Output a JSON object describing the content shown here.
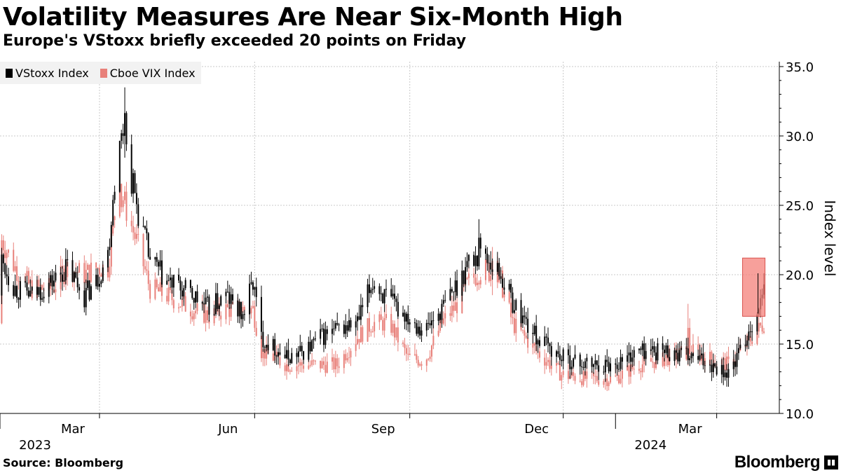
{
  "header": {
    "title": "Volatility Measures Are Near Six-Month High",
    "subtitle": "Europe's VStoxx briefly exceeded 20 points on Friday"
  },
  "footer": {
    "source": "Source: Bloomberg",
    "brand": "Bloomberg",
    "brand_icon": "bloomberg-terminal-icon"
  },
  "chart_data": {
    "type": "line",
    "style": "candlestick",
    "title": "Volatility Measures Are Near Six-Month High",
    "subtitle": "Europe's VStoxx briefly exceeded 20 points on Friday",
    "ylabel": "Index level",
    "xlabel": "",
    "ylim": [
      10,
      35
    ],
    "yticks": [
      10.0,
      15.0,
      20.0,
      25.0,
      30.0,
      35.0
    ],
    "ytick_labels": [
      "10.0",
      "15.0",
      "20.0",
      "25.0",
      "30.0",
      "35.0"
    ],
    "grid": true,
    "legend_position": "top-left",
    "x_range": [
      "2023-01-01",
      "2024-03-29"
    ],
    "x_month_ticks": [
      {
        "date": "2023-03-01",
        "label": "Mar"
      },
      {
        "date": "2023-06-01",
        "label": "Jun"
      },
      {
        "date": "2023-09-01",
        "label": "Sep"
      },
      {
        "date": "2023-12-01",
        "label": "Dec"
      },
      {
        "date": "2024-03-01",
        "label": "Mar"
      }
    ],
    "x_year_ticks": [
      {
        "date": "2023-01-01",
        "label": "2023"
      },
      {
        "date": "2024-01-01",
        "label": "2024"
      }
    ],
    "series": [
      {
        "name": "VStoxx Index",
        "color": "#000000",
        "anchors": [
          [
            "2023-01-02",
            21.0
          ],
          [
            "2023-01-10",
            19.0
          ],
          [
            "2023-01-20",
            18.5
          ],
          [
            "2023-02-01",
            19.5
          ],
          [
            "2023-02-10",
            20.5
          ],
          [
            "2023-02-20",
            18.5
          ],
          [
            "2023-02-27",
            19.5
          ],
          [
            "2023-03-06",
            21.5
          ],
          [
            "2023-03-10",
            27.0
          ],
          [
            "2023-03-15",
            30.5
          ],
          [
            "2023-03-20",
            27.0
          ],
          [
            "2023-03-24",
            24.5
          ],
          [
            "2023-03-31",
            21.0
          ],
          [
            "2023-04-10",
            19.5
          ],
          [
            "2023-04-25",
            18.5
          ],
          [
            "2023-05-05",
            17.5
          ],
          [
            "2023-05-15",
            18.5
          ],
          [
            "2023-05-25",
            17.0
          ],
          [
            "2023-05-31",
            19.5
          ],
          [
            "2023-06-05",
            15.5
          ],
          [
            "2023-06-20",
            14.0
          ],
          [
            "2023-07-01",
            14.5
          ],
          [
            "2023-07-10",
            15.5
          ],
          [
            "2023-07-20",
            16.0
          ],
          [
            "2023-08-01",
            16.5
          ],
          [
            "2023-08-10",
            19.5
          ],
          [
            "2023-08-20",
            18.0
          ],
          [
            "2023-08-31",
            17.0
          ],
          [
            "2023-09-10",
            16.0
          ],
          [
            "2023-09-20",
            17.5
          ],
          [
            "2023-09-30",
            19.5
          ],
          [
            "2023-10-06",
            21.0
          ],
          [
            "2023-10-15",
            21.5
          ],
          [
            "2023-10-25",
            20.0
          ],
          [
            "2023-11-01",
            18.0
          ],
          [
            "2023-11-15",
            15.5
          ],
          [
            "2023-11-30",
            14.0
          ],
          [
            "2023-12-15",
            13.5
          ],
          [
            "2023-12-31",
            13.5
          ],
          [
            "2024-01-15",
            14.5
          ],
          [
            "2024-01-31",
            14.5
          ],
          [
            "2024-02-15",
            14.0
          ],
          [
            "2024-02-29",
            13.5
          ],
          [
            "2024-03-08",
            12.8
          ],
          [
            "2024-03-15",
            14.5
          ],
          [
            "2024-03-22",
            16.5
          ],
          [
            "2024-03-29",
            18.5
          ]
        ],
        "peaks": [
          {
            "date": "2023-03-16",
            "value": 33.5
          },
          {
            "date": "2023-10-12",
            "value": 24.0
          },
          {
            "date": "2024-03-29",
            "value": 20.1
          }
        ]
      },
      {
        "name": "Cboe VIX Index",
        "color": "#e8807a",
        "anchors": [
          [
            "2023-01-02",
            22.5
          ],
          [
            "2023-01-10",
            20.5
          ],
          [
            "2023-01-20",
            19.0
          ],
          [
            "2023-02-01",
            19.0
          ],
          [
            "2023-02-10",
            20.5
          ],
          [
            "2023-02-20",
            20.0
          ],
          [
            "2023-02-27",
            20.5
          ],
          [
            "2023-03-06",
            20.5
          ],
          [
            "2023-03-10",
            24.5
          ],
          [
            "2023-03-15",
            25.5
          ],
          [
            "2023-03-20",
            23.5
          ],
          [
            "2023-03-24",
            22.0
          ],
          [
            "2023-03-31",
            19.0
          ],
          [
            "2023-04-10",
            18.5
          ],
          [
            "2023-04-25",
            17.5
          ],
          [
            "2023-05-05",
            17.0
          ],
          [
            "2023-05-15",
            17.5
          ],
          [
            "2023-05-25",
            17.5
          ],
          [
            "2023-05-31",
            17.5
          ],
          [
            "2023-06-05",
            14.5
          ],
          [
            "2023-06-20",
            13.5
          ],
          [
            "2023-07-01",
            13.5
          ],
          [
            "2023-07-10",
            13.5
          ],
          [
            "2023-07-20",
            13.5
          ],
          [
            "2023-08-01",
            15.5
          ],
          [
            "2023-08-10",
            16.5
          ],
          [
            "2023-08-20",
            16.5
          ],
          [
            "2023-08-31",
            14.0
          ],
          [
            "2023-09-10",
            13.8
          ],
          [
            "2023-09-20",
            16.5
          ],
          [
            "2023-09-30",
            18.0
          ],
          [
            "2023-10-06",
            19.5
          ],
          [
            "2023-10-15",
            20.5
          ],
          [
            "2023-10-25",
            19.5
          ],
          [
            "2023-11-01",
            16.5
          ],
          [
            "2023-11-15",
            14.5
          ],
          [
            "2023-11-30",
            12.8
          ],
          [
            "2023-12-15",
            12.5
          ],
          [
            "2023-12-31",
            12.5
          ],
          [
            "2024-01-15",
            13.5
          ],
          [
            "2024-01-31",
            14.0
          ],
          [
            "2024-02-15",
            14.5
          ],
          [
            "2024-02-29",
            13.8
          ],
          [
            "2024-03-08",
            13.5
          ],
          [
            "2024-03-15",
            14.5
          ],
          [
            "2024-03-22",
            15.5
          ],
          [
            "2024-03-29",
            16.5
          ]
        ],
        "peaks": [
          {
            "date": "2023-03-13",
            "value": 28.0
          },
          {
            "date": "2023-10-20",
            "value": 22.0
          },
          {
            "date": "2024-02-13",
            "value": 17.9
          }
        ]
      }
    ],
    "annotations": [
      {
        "type": "highlight-box",
        "x_range": [
          "2024-03-18",
          "2024-03-28"
        ],
        "y_range": [
          17.0,
          21.2
        ],
        "color": "#f4807a"
      }
    ]
  }
}
